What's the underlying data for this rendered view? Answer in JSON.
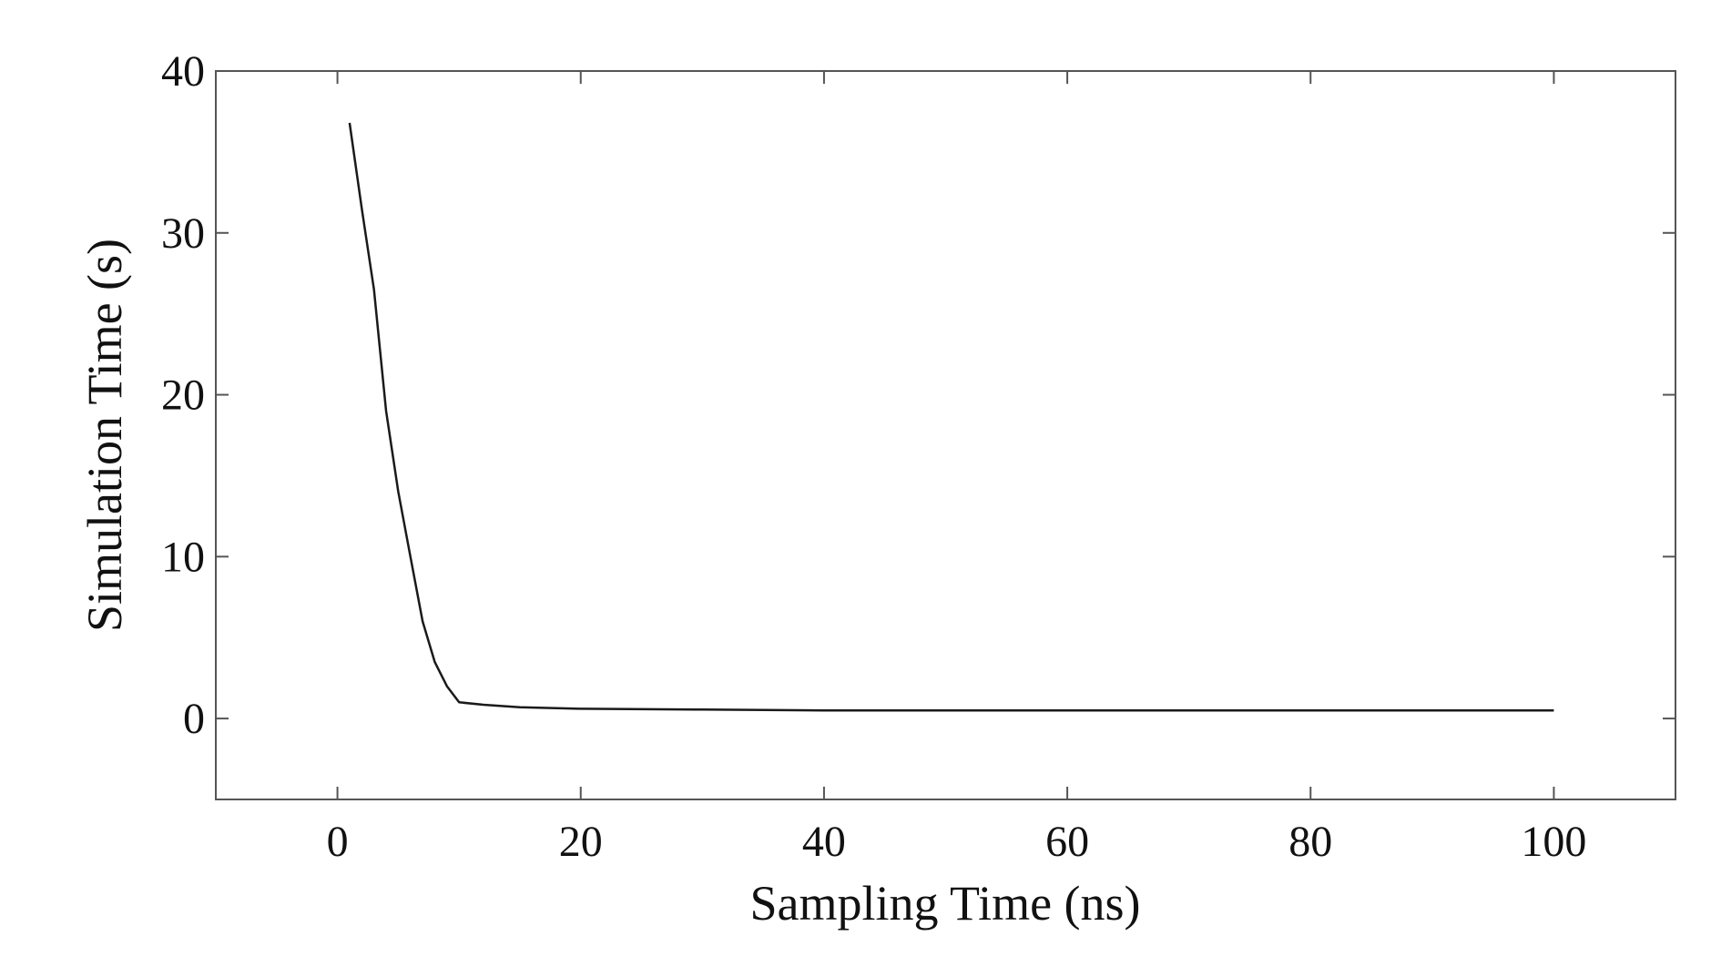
{
  "chart_data": {
    "type": "line",
    "xlabel": "Sampling Time (ns)",
    "ylabel": "Simulation Time (s)",
    "xlim": [
      -10,
      110
    ],
    "ylim": [
      -5,
      40
    ],
    "xticks": [
      0,
      20,
      40,
      60,
      80,
      100
    ],
    "yticks": [
      0,
      10,
      20,
      30,
      40
    ],
    "grid": false,
    "series": [
      {
        "color": "#1a1a1a",
        "x": [
          1,
          2,
          3,
          4,
          5,
          6,
          7,
          8,
          9,
          10,
          12,
          15,
          20,
          30,
          40,
          50,
          60,
          70,
          80,
          90,
          100
        ],
        "y": [
          36.8,
          31.5,
          26.5,
          19.0,
          14.0,
          10.0,
          6.0,
          3.5,
          2.0,
          1.0,
          0.85,
          0.7,
          0.6,
          0.55,
          0.5,
          0.5,
          0.5,
          0.5,
          0.5,
          0.5,
          0.5
        ]
      }
    ]
  }
}
